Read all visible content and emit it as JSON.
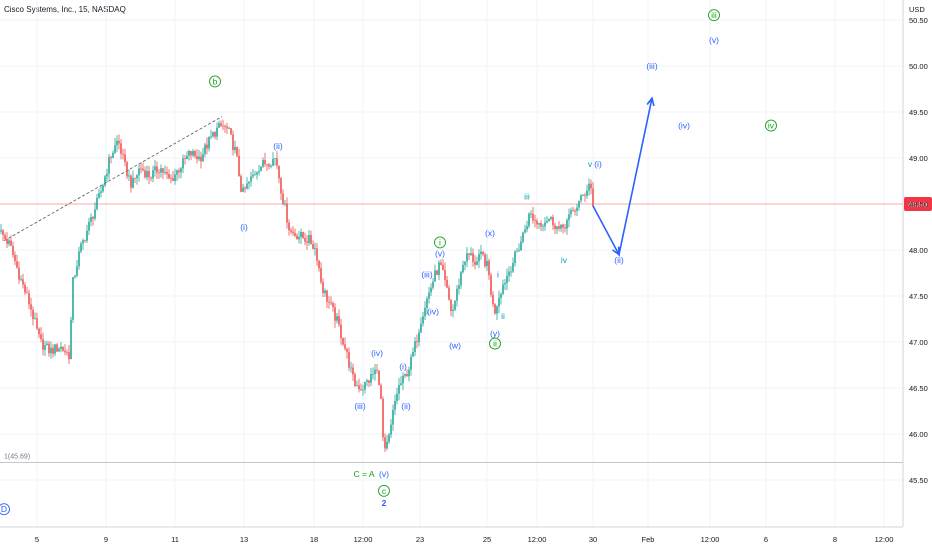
{
  "header": {
    "title": "Cisco Systems, Inc., 15, NASDAQ"
  },
  "chart_data": {
    "type": "candlestick",
    "title": "Cisco Systems, Inc., 15, NASDAQ",
    "currency_label": "USD",
    "y_range": [
      45.0,
      50.6
    ],
    "y_ticks": [
      "45.50",
      "46.00",
      "46.50",
      "47.00",
      "47.50",
      "48.00",
      "48.50",
      "49.00",
      "49.50",
      "50.00",
      "50.50"
    ],
    "x_ticks": [
      "5",
      "9",
      "11",
      "13",
      "18",
      "12:00",
      "23",
      "25",
      "12:00",
      "30",
      "Feb",
      "12:00",
      "6",
      "8",
      "12:00"
    ],
    "last_price": "48.50",
    "low_marker_label": "1(45.69)",
    "low_marker_value": 45.69,
    "colors": {
      "up": "#26a69a",
      "down": "#ef5350",
      "wave_blue": "#2962ff",
      "wave_green": "#1b9e1b",
      "wave_teal": "#00a5a5",
      "grid": "#f0f3fa",
      "price_line": "#f7a8a8",
      "badge": "#f23645"
    },
    "price_path": [
      [
        0,
        48.2
      ],
      [
        10,
        48.05
      ],
      [
        20,
        47.7
      ],
      [
        30,
        47.4
      ],
      [
        40,
        47.0
      ],
      [
        50,
        46.9
      ],
      [
        60,
        46.95
      ],
      [
        70,
        46.85
      ],
      [
        72,
        47.6
      ],
      [
        80,
        48.0
      ],
      [
        90,
        48.3
      ],
      [
        100,
        48.6
      ],
      [
        110,
        49.0
      ],
      [
        118,
        49.2
      ],
      [
        125,
        48.9
      ],
      [
        132,
        48.7
      ],
      [
        140,
        48.9
      ],
      [
        150,
        48.8
      ],
      [
        160,
        48.9
      ],
      [
        170,
        48.75
      ],
      [
        180,
        48.9
      ],
      [
        190,
        49.05
      ],
      [
        200,
        49.0
      ],
      [
        210,
        49.2
      ],
      [
        216,
        49.3
      ],
      [
        222,
        49.35
      ],
      [
        228,
        49.3
      ],
      [
        236,
        49.05
      ],
      [
        242,
        48.6
      ],
      [
        250,
        48.75
      ],
      [
        258,
        48.9
      ],
      [
        266,
        48.95
      ],
      [
        276,
        49.0
      ],
      [
        282,
        48.6
      ],
      [
        290,
        48.2
      ],
      [
        300,
        48.15
      ],
      [
        310,
        48.1
      ],
      [
        316,
        48.0
      ],
      [
        322,
        47.6
      ],
      [
        330,
        47.4
      ],
      [
        338,
        47.2
      ],
      [
        346,
        46.9
      ],
      [
        354,
        46.55
      ],
      [
        362,
        46.5
      ],
      [
        370,
        46.6
      ],
      [
        376,
        46.7
      ],
      [
        380,
        46.55
      ],
      [
        384,
        45.75
      ],
      [
        390,
        46.0
      ],
      [
        394,
        46.3
      ],
      [
        398,
        46.5
      ],
      [
        404,
        46.6
      ],
      [
        410,
        46.75
      ],
      [
        416,
        47.0
      ],
      [
        422,
        47.3
      ],
      [
        428,
        47.5
      ],
      [
        434,
        47.7
      ],
      [
        440,
        47.85
      ],
      [
        446,
        47.6
      ],
      [
        452,
        47.3
      ],
      [
        458,
        47.6
      ],
      [
        464,
        47.9
      ],
      [
        470,
        47.95
      ],
      [
        476,
        47.85
      ],
      [
        482,
        47.95
      ],
      [
        488,
        47.8
      ],
      [
        494,
        47.3
      ],
      [
        500,
        47.55
      ],
      [
        506,
        47.7
      ],
      [
        512,
        47.85
      ],
      [
        518,
        48.0
      ],
      [
        524,
        48.2
      ],
      [
        530,
        48.4
      ],
      [
        536,
        48.3
      ],
      [
        542,
        48.3
      ],
      [
        548,
        48.35
      ],
      [
        554,
        48.3
      ],
      [
        560,
        48.2
      ],
      [
        566,
        48.3
      ],
      [
        572,
        48.4
      ],
      [
        578,
        48.5
      ],
      [
        584,
        48.6
      ],
      [
        590,
        48.75
      ],
      [
        593,
        48.5
      ]
    ],
    "projection": [
      [
        593,
        48.48
      ],
      [
        619,
        47.95
      ],
      [
        652,
        49.65
      ]
    ],
    "trendline": [
      [
        4,
        48.1
      ],
      [
        222,
        49.45
      ]
    ],
    "wave_labels": [
      {
        "text": "b",
        "x": 215,
        "y": 49.8,
        "color": "green",
        "circled": true
      },
      {
        "text": "(ii)",
        "x": 278,
        "y": 49.1,
        "color": "blue",
        "circled": false
      },
      {
        "text": "(i)",
        "x": 244,
        "y": 48.22,
        "color": "blue",
        "circled": false
      },
      {
        "text": "(iv)",
        "x": 377,
        "y": 46.85,
        "color": "blue",
        "circled": false
      },
      {
        "text": "(iii)",
        "x": 360,
        "y": 46.27,
        "color": "blue",
        "circled": false
      },
      {
        "text": "(i)",
        "x": 403,
        "y": 46.7,
        "color": "blue",
        "circled": false
      },
      {
        "text": "(ii)",
        "x": 406,
        "y": 46.27,
        "color": "blue",
        "circled": false
      },
      {
        "text": "(v)",
        "x": 384,
        "y": 45.53,
        "color": "blue",
        "circled": false
      },
      {
        "text": "C = A",
        "x": 364,
        "y": 45.53,
        "color": "green",
        "circled": false
      },
      {
        "text": "c",
        "x": 384,
        "y": 45.35,
        "color": "green",
        "circled": true
      },
      {
        "text": "2",
        "x": 384,
        "y": 45.22,
        "color": "blue",
        "circled": false
      },
      {
        "text": "i",
        "x": 440,
        "y": 48.05,
        "color": "green",
        "circled": true
      },
      {
        "text": "(v)",
        "x": 440,
        "y": 47.93,
        "color": "blue",
        "circled": false
      },
      {
        "text": "(iii)",
        "x": 427,
        "y": 47.7,
        "color": "blue",
        "circled": false
      },
      {
        "text": "(iv)",
        "x": 433,
        "y": 47.3,
        "color": "blue",
        "circled": false
      },
      {
        "text": "(w)",
        "x": 455,
        "y": 46.93,
        "color": "blue",
        "circled": false
      },
      {
        "text": "(x)",
        "x": 490,
        "y": 48.15,
        "color": "blue",
        "circled": false
      },
      {
        "text": "i",
        "x": 498,
        "y": 47.7,
        "color": "blue",
        "circled": false
      },
      {
        "text": "ii",
        "x": 503,
        "y": 47.25,
        "color": "teal",
        "circled": false
      },
      {
        "text": "(y)",
        "x": 495,
        "y": 47.06,
        "color": "blue",
        "circled": false
      },
      {
        "text": "ii",
        "x": 495,
        "y": 46.95,
        "color": "green",
        "circled": true
      },
      {
        "text": "iii",
        "x": 527,
        "y": 48.55,
        "color": "teal",
        "circled": false
      },
      {
        "text": "iv",
        "x": 564,
        "y": 47.86,
        "color": "teal",
        "circled": false
      },
      {
        "text": "v",
        "x": 590,
        "y": 48.9,
        "color": "teal",
        "circled": false
      },
      {
        "text": "(i)",
        "x": 598,
        "y": 48.9,
        "color": "blue",
        "circled": false
      },
      {
        "text": "(ii)",
        "x": 619,
        "y": 47.86,
        "color": "blue",
        "circled": false
      },
      {
        "text": "(iii)",
        "x": 652,
        "y": 49.97,
        "color": "blue",
        "circled": false
      },
      {
        "text": "(iv)",
        "x": 684,
        "y": 49.32,
        "color": "blue",
        "circled": false
      },
      {
        "text": "iv",
        "x": 771,
        "y": 49.32,
        "color": "green",
        "circled": true
      },
      {
        "text": "iii",
        "x": 714,
        "y": 50.52,
        "color": "green",
        "circled": true
      },
      {
        "text": "(v)",
        "x": 714,
        "y": 50.25,
        "color": "blue",
        "circled": false
      },
      {
        "text": "D",
        "x": 4,
        "y": 45.15,
        "color": "blue",
        "circled": true
      }
    ]
  }
}
